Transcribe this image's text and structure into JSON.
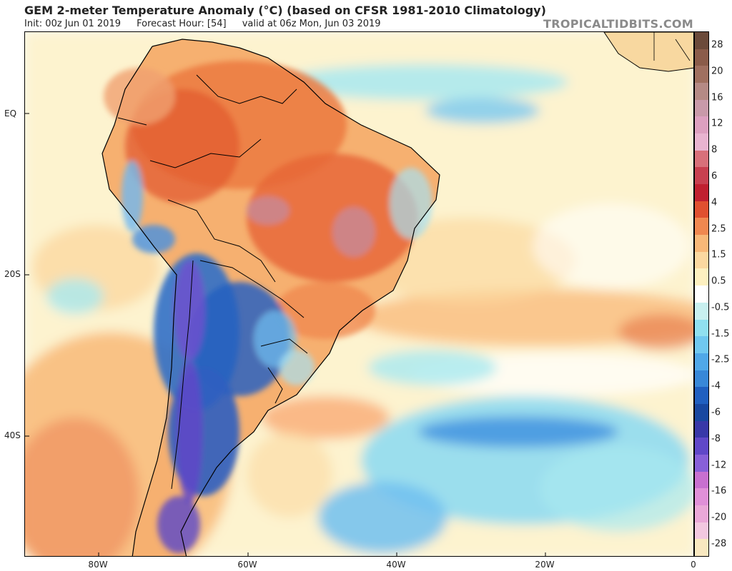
{
  "header": {
    "title": "GEM 2-meter Temperature Anomaly (°C) (based on CFSR 1981-2010 Climatology)",
    "init": "Init: 00z Jun 01 2019",
    "forecast_hour": "Forecast Hour: [54]",
    "valid": "valid at 06z Mon, Jun 03 2019",
    "brand": "TROPICALTIDBITS.COM"
  },
  "map": {
    "region": "South America and South Atlantic",
    "lat_labels": [
      "EQ",
      "20S",
      "40S"
    ],
    "lon_labels": [
      "80W",
      "60W",
      "40W",
      "20W",
      "0"
    ]
  },
  "colorbar": {
    "labels": [
      "28",
      "20",
      "16",
      "12",
      "8",
      "6",
      "4",
      "2.5",
      "1.5",
      "0.5",
      "-0.5",
      "-1.5",
      "-2.5",
      "-4",
      "-6",
      "-8",
      "-12",
      "-16",
      "-20",
      "-28"
    ],
    "colors": [
      "#6b4a3a",
      "#8b5c4a",
      "#a07060",
      "#b58a85",
      "#c99aaa",
      "#dda0c0",
      "#e8b4d0",
      "#d8707a",
      "#c84050",
      "#c02030",
      "#e05030",
      "#f08850",
      "#f8b878",
      "#fbd8a0",
      "#fdf0c0",
      "#ffffff",
      "#c8f0f0",
      "#90e0f0",
      "#70c8f0",
      "#50a8e8",
      "#3888d8",
      "#2060c0",
      "#1848a0",
      "#3838a8",
      "#6048c8",
      "#8860d8",
      "#c870d0",
      "#e090d8",
      "#eaa8d8",
      "#f2c8e0",
      "#f8e8c0"
    ]
  }
}
